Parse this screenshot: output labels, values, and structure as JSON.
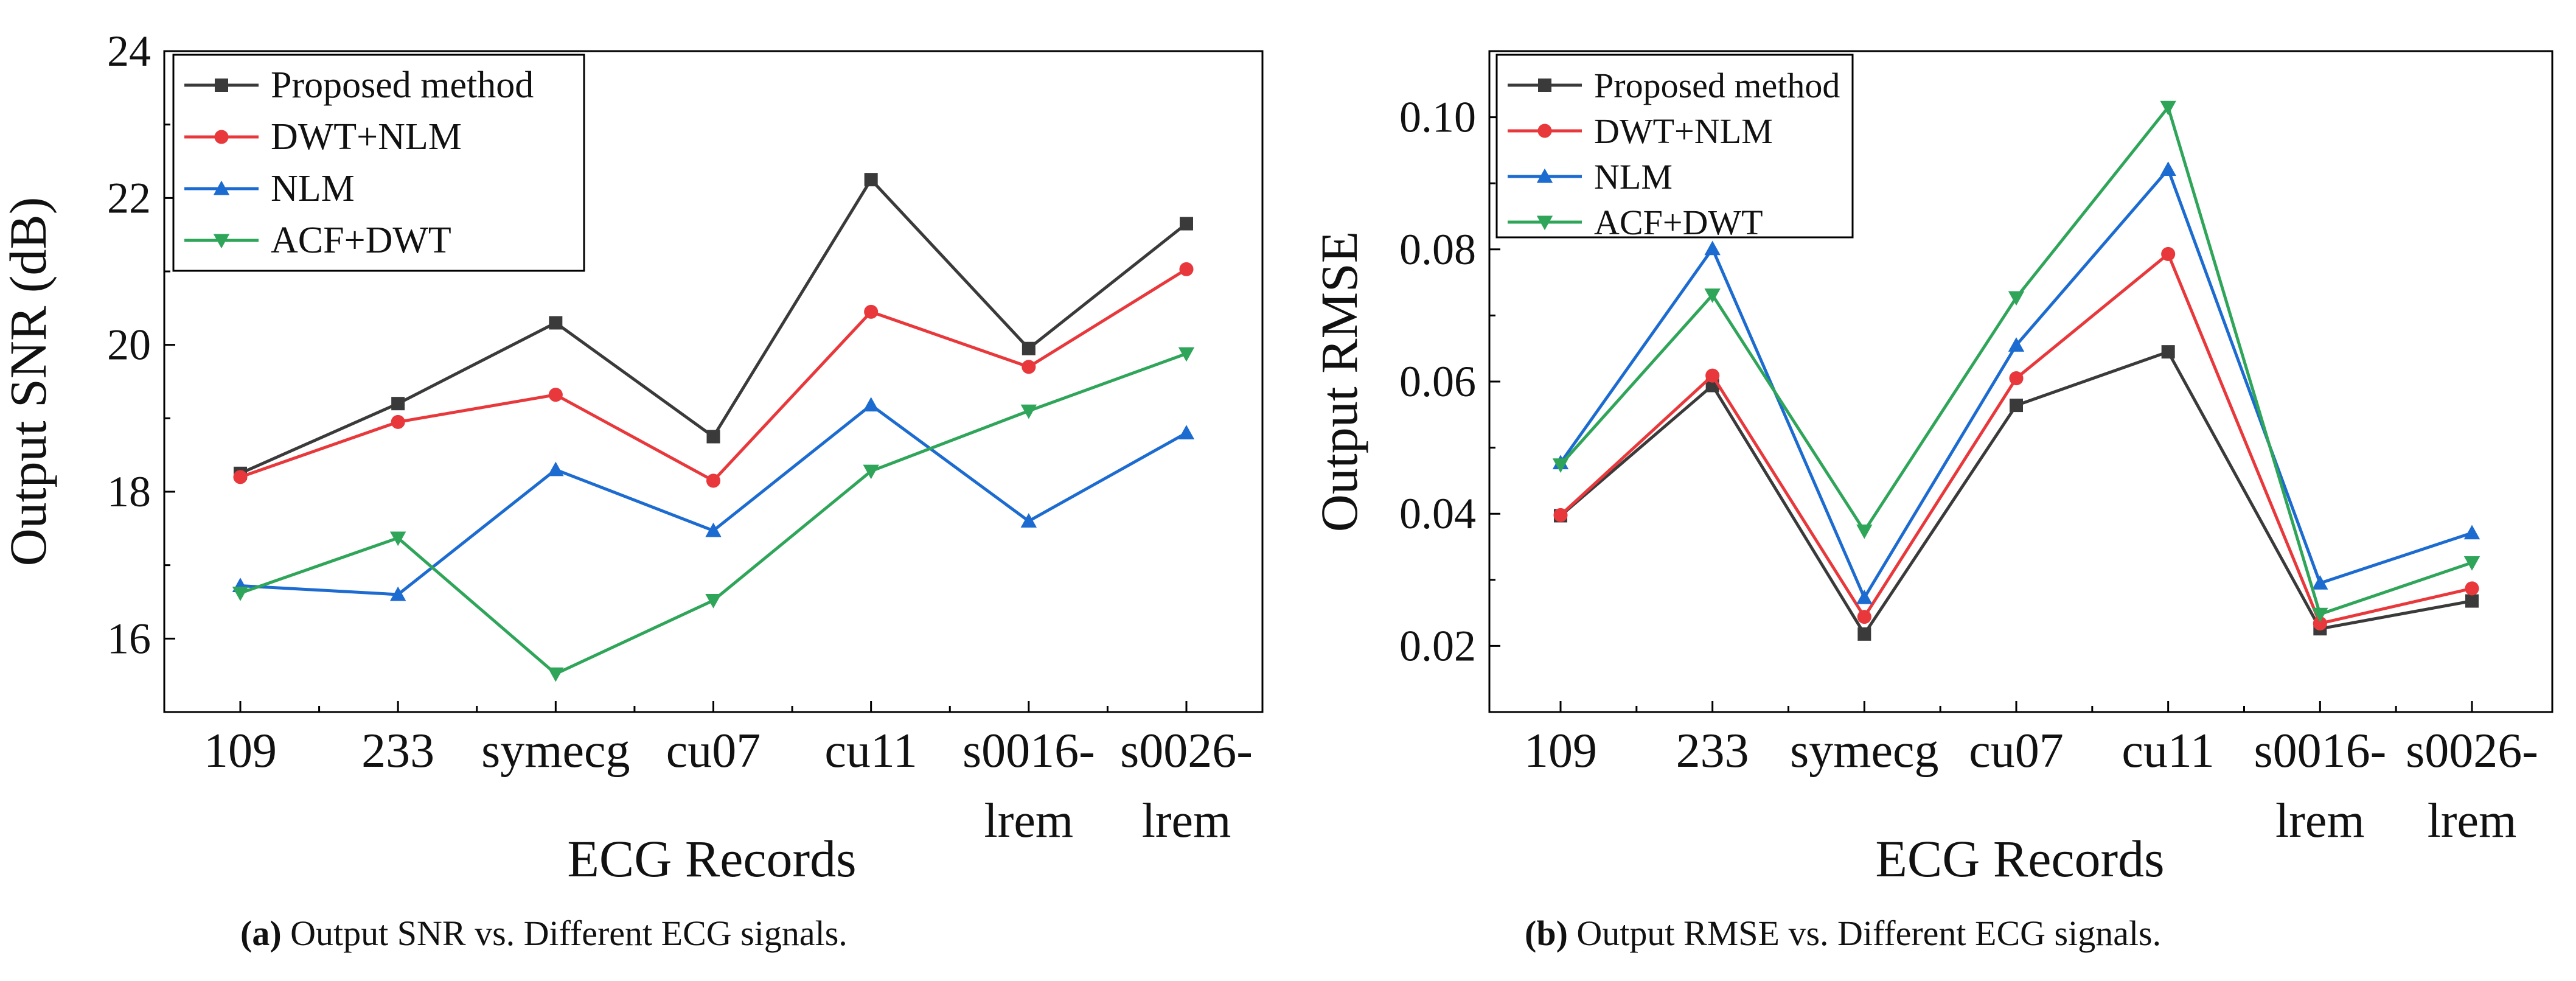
{
  "chart_data": [
    {
      "type": "line",
      "title": "",
      "xlabel": "ECG Records",
      "ylabel": "Output SNR (dB)",
      "categories": [
        [
          "109"
        ],
        [
          "233"
        ],
        [
          "symecg"
        ],
        [
          "cu07"
        ],
        [
          "cu11"
        ],
        [
          "s0016-",
          "lrem"
        ],
        [
          "s0026-",
          "lrem"
        ]
      ],
      "ylim": [
        15,
        24
      ],
      "yticks": [
        16,
        18,
        20,
        22,
        24
      ],
      "ytick_labels": [
        "16",
        "18",
        "20",
        "22",
        "24"
      ],
      "legend_position": "top-left",
      "series": [
        {
          "name": "Proposed method",
          "color": "#3a3a3a",
          "marker": "square",
          "values": [
            18.25,
            19.2,
            20.3,
            18.75,
            22.25,
            19.95,
            21.65
          ]
        },
        {
          "name": "DWT+NLM",
          "color": "#e8383b",
          "marker": "circle",
          "values": [
            18.2,
            18.95,
            19.32,
            18.15,
            20.45,
            19.7,
            21.03
          ]
        },
        {
          "name": "NLM",
          "color": "#1c6bd0",
          "marker": "triangle-up",
          "values": [
            16.72,
            16.6,
            18.3,
            17.47,
            19.18,
            17.6,
            18.8
          ]
        },
        {
          "name": "ACF+DWT",
          "color": "#2fa55a",
          "marker": "triangle-down",
          "values": [
            16.62,
            17.37,
            15.52,
            16.52,
            18.28,
            19.1,
            19.88
          ]
        }
      ]
    },
    {
      "type": "line",
      "title": "",
      "xlabel": "ECG Records",
      "ylabel": "Output RMSE",
      "categories": [
        [
          "109"
        ],
        [
          "233"
        ],
        [
          "symecg"
        ],
        [
          "cu07"
        ],
        [
          "cu11"
        ],
        [
          "s0016-",
          "lrem"
        ],
        [
          "s0026-",
          "lrem"
        ]
      ],
      "ylim": [
        0.01,
        0.11
      ],
      "yticks": [
        0.02,
        0.04,
        0.06,
        0.08,
        0.1
      ],
      "ytick_labels": [
        "0.02",
        "0.04",
        "0.06",
        "0.08",
        "0.10"
      ],
      "legend_position": "top-left",
      "series": [
        {
          "name": "Proposed method",
          "color": "#3a3a3a",
          "marker": "square",
          "values": [
            0.0397,
            0.0594,
            0.0218,
            0.0564,
            0.0645,
            0.0226,
            0.0268
          ]
        },
        {
          "name": "DWT+NLM",
          "color": "#e8383b",
          "marker": "circle",
          "values": [
            0.0398,
            0.0609,
            0.0244,
            0.0605,
            0.0793,
            0.0234,
            0.0287
          ]
        },
        {
          "name": "NLM",
          "color": "#1c6bd0",
          "marker": "triangle-up",
          "values": [
            0.0477,
            0.0801,
            0.0273,
            0.0655,
            0.0921,
            0.0295,
            0.0371
          ]
        },
        {
          "name": "ACF+DWT",
          "color": "#2fa55a",
          "marker": "triangle-down",
          "values": [
            0.0474,
            0.0731,
            0.0374,
            0.0727,
            0.1015,
            0.0248,
            0.0326
          ]
        }
      ]
    }
  ],
  "captions": {
    "a_label": "(a)",
    "a_text": " Output SNR vs. Different ECG signals.",
    "b_label": "(b)",
    "b_text": " Output RMSE vs. Different ECG signals."
  }
}
